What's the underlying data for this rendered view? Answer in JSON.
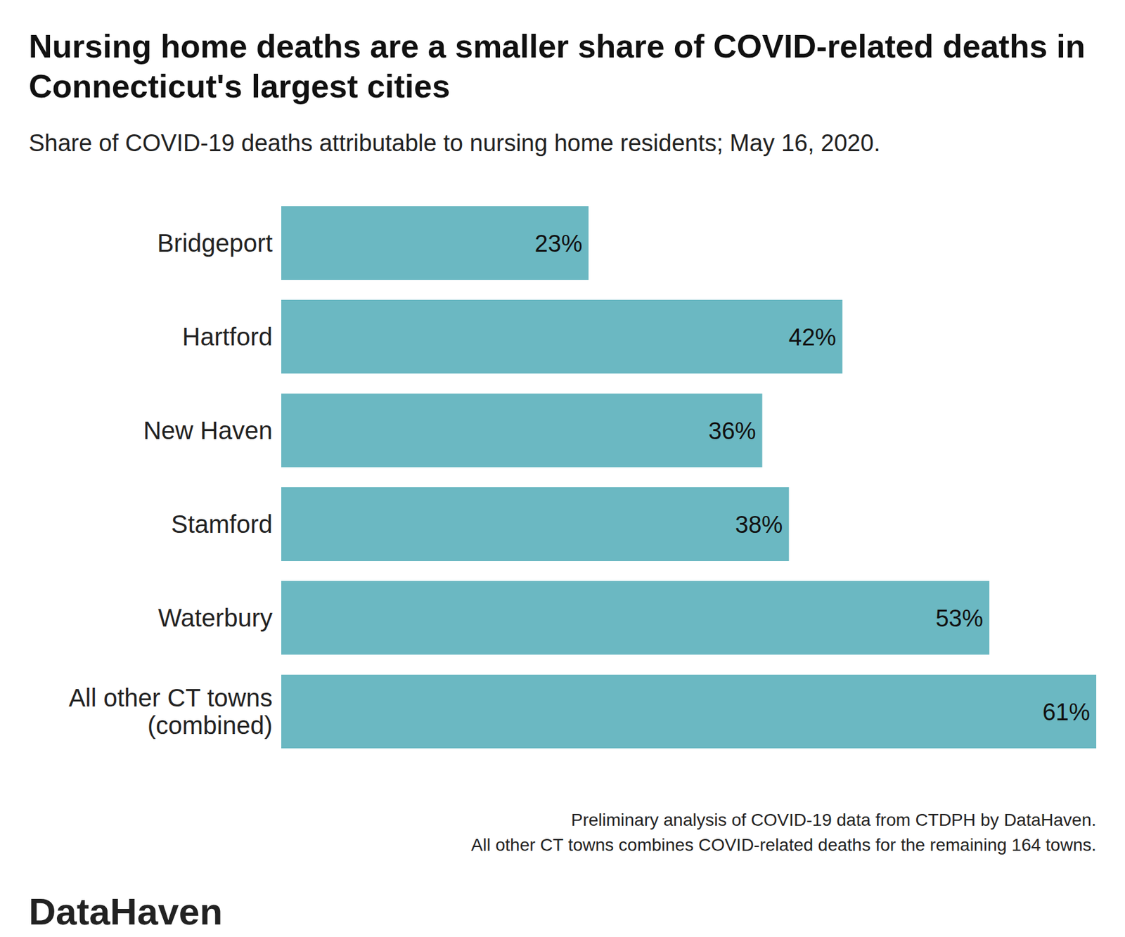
{
  "chart_data": {
    "type": "bar",
    "orientation": "horizontal",
    "title": "Nursing home deaths are a smaller share of COVID-related deaths in Connecticut's largest cities",
    "subtitle": "Share of COVID-19 deaths attributable to nursing home residents; May 16, 2020.",
    "categories": [
      "Bridgeport",
      "Hartford",
      "New Haven",
      "Stamford",
      "Waterbury",
      "All other CT towns (combined)"
    ],
    "values": [
      23,
      42,
      36,
      38,
      53,
      61
    ],
    "value_labels": [
      "23%",
      "42%",
      "36%",
      "38%",
      "53%",
      "61%"
    ],
    "data_labels": true,
    "color": "#6bb8c2",
    "xlim": [
      0,
      61
    ],
    "tick_labels": false,
    "grid": false,
    "notes": [
      "Preliminary analysis of COVID-19 data from CTDPH by DataHaven.",
      "All other CT towns combines COVID-related deaths for the remaining 164 towns."
    ],
    "logo": "DataHaven"
  }
}
